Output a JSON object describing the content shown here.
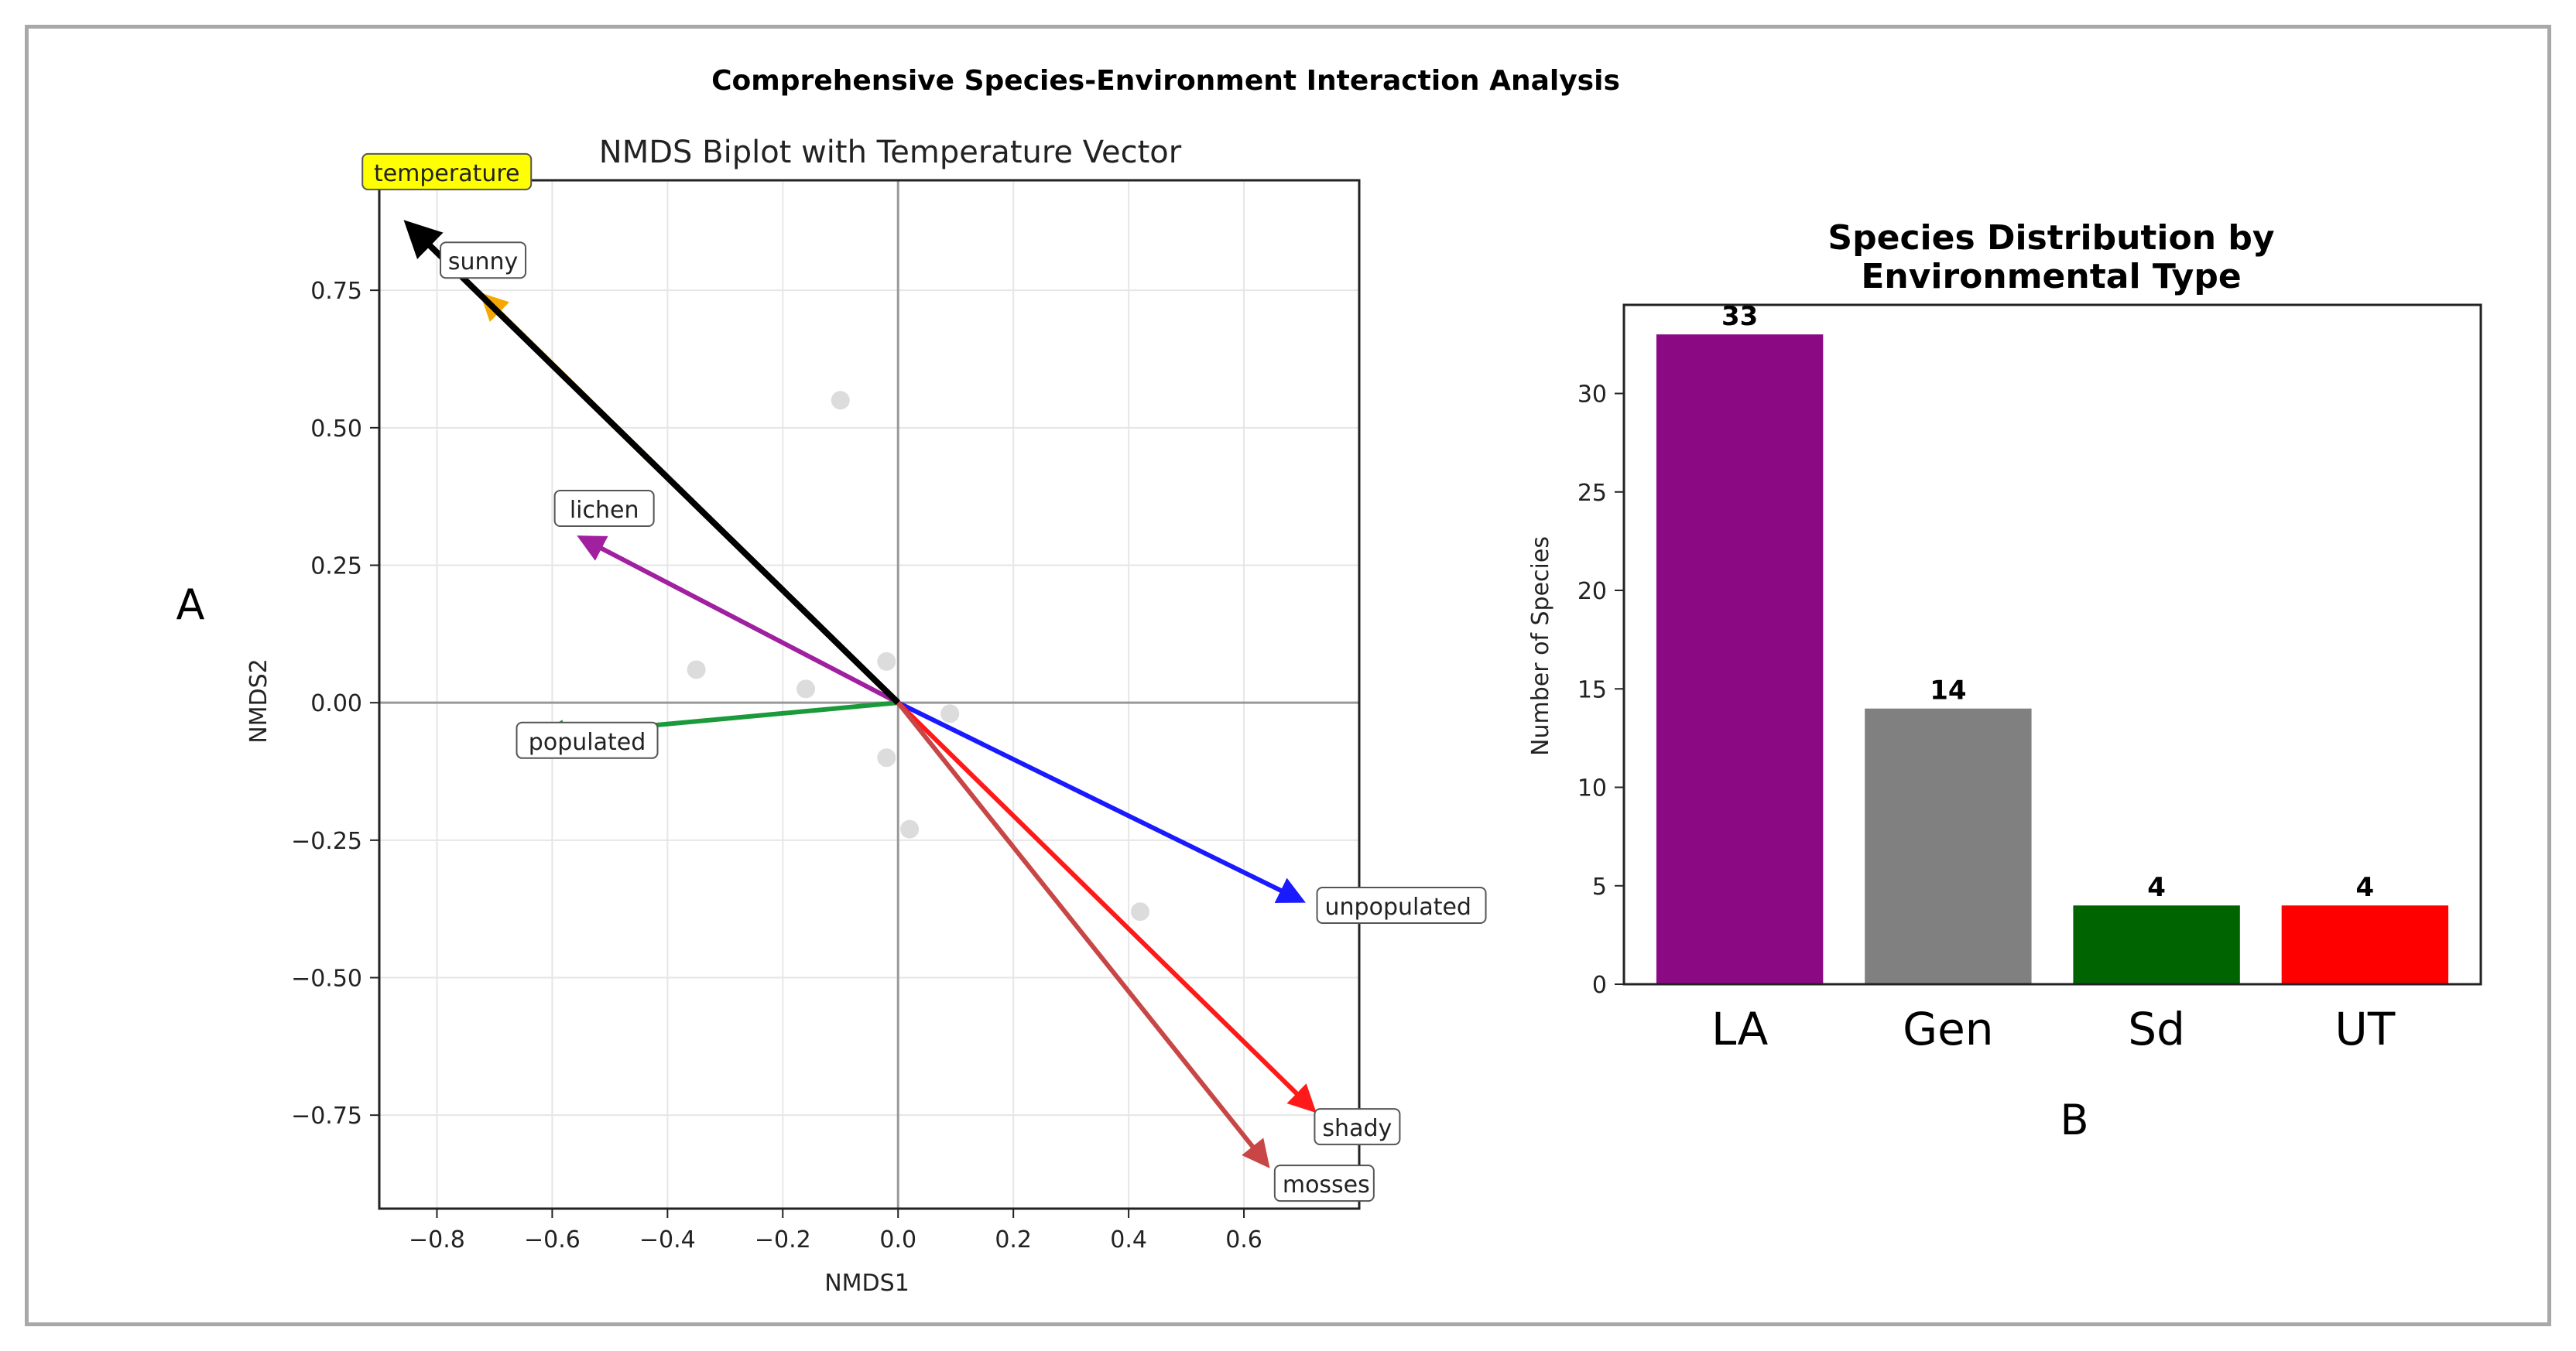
{
  "suptitle": "Comprehensive Species-Environment Interaction Analysis",
  "panel_labels": {
    "a": "A",
    "b": "B"
  },
  "chart_data": [
    {
      "type": "scatter",
      "title": "NMDS Biplot with Temperature Vector",
      "xlabel": "NMDS1",
      "ylabel": "NMDS2",
      "xlim": [
        -0.9,
        0.8
      ],
      "ylim": [
        -0.92,
        0.95
      ],
      "xticks": [
        -0.8,
        -0.6,
        -0.4,
        -0.2,
        0.0,
        0.2,
        0.4,
        0.6
      ],
      "xtick_labels": [
        "−0.8",
        "−0.6",
        "−0.4",
        "−0.2",
        "0.0",
        "0.2",
        "0.4",
        "0.6"
      ],
      "yticks": [
        0.75,
        0.5,
        0.25,
        0.0,
        -0.25,
        -0.5,
        -0.75
      ],
      "ytick_labels": [
        "0.75",
        "0.50",
        "0.25",
        "0.00",
        "−0.25",
        "−0.50",
        "−0.75"
      ],
      "grid": true,
      "points": [
        {
          "x": -0.1,
          "y": 0.55
        },
        {
          "x": -0.35,
          "y": 0.06
        },
        {
          "x": -0.16,
          "y": 0.025
        },
        {
          "x": -0.02,
          "y": 0.075
        },
        {
          "x": -0.02,
          "y": -0.1
        },
        {
          "x": 0.09,
          "y": -0.02
        },
        {
          "x": 0.02,
          "y": -0.23
        },
        {
          "x": 0.42,
          "y": -0.38
        }
      ],
      "vectors": [
        {
          "name": "sunny",
          "x": -0.72,
          "y": 0.74,
          "color": "#f5a800"
        },
        {
          "name": "lichen",
          "x": -0.55,
          "y": 0.3,
          "color": "#a020a0"
        },
        {
          "name": "populated",
          "x": -0.62,
          "y": -0.06,
          "color": "#1a9a3a"
        },
        {
          "name": "unpopulated",
          "x": 0.7,
          "y": -0.36,
          "color": "#1a1aff"
        },
        {
          "name": "shady",
          "x": 0.72,
          "y": -0.74,
          "color": "#ff1a1a"
        },
        {
          "name": "mosses",
          "x": 0.64,
          "y": -0.84,
          "color": "#c84646"
        },
        {
          "name": "temperature",
          "x": -0.85,
          "y": 0.87,
          "color": "#000000",
          "highlight": "#ffff00"
        }
      ]
    },
    {
      "type": "bar",
      "title": "Species Distribution by Environmental Type",
      "title_lines": [
        "Species Distribution by",
        "Environmental Type"
      ],
      "ylabel": "Number of Species",
      "categories": [
        "LA",
        "Gen",
        "Sd",
        "UT"
      ],
      "values": [
        33,
        14,
        4,
        4
      ],
      "value_labels": [
        "33",
        "14",
        "4",
        "4"
      ],
      "colors": [
        "#8b0a84",
        "#808080",
        "#006400",
        "#ff0000"
      ],
      "ylim": [
        0,
        34.5
      ],
      "yticks": [
        0,
        5,
        10,
        15,
        20,
        25,
        30
      ],
      "ytick_labels": [
        "0",
        "5",
        "10",
        "15",
        "20",
        "25",
        "30"
      ]
    }
  ]
}
